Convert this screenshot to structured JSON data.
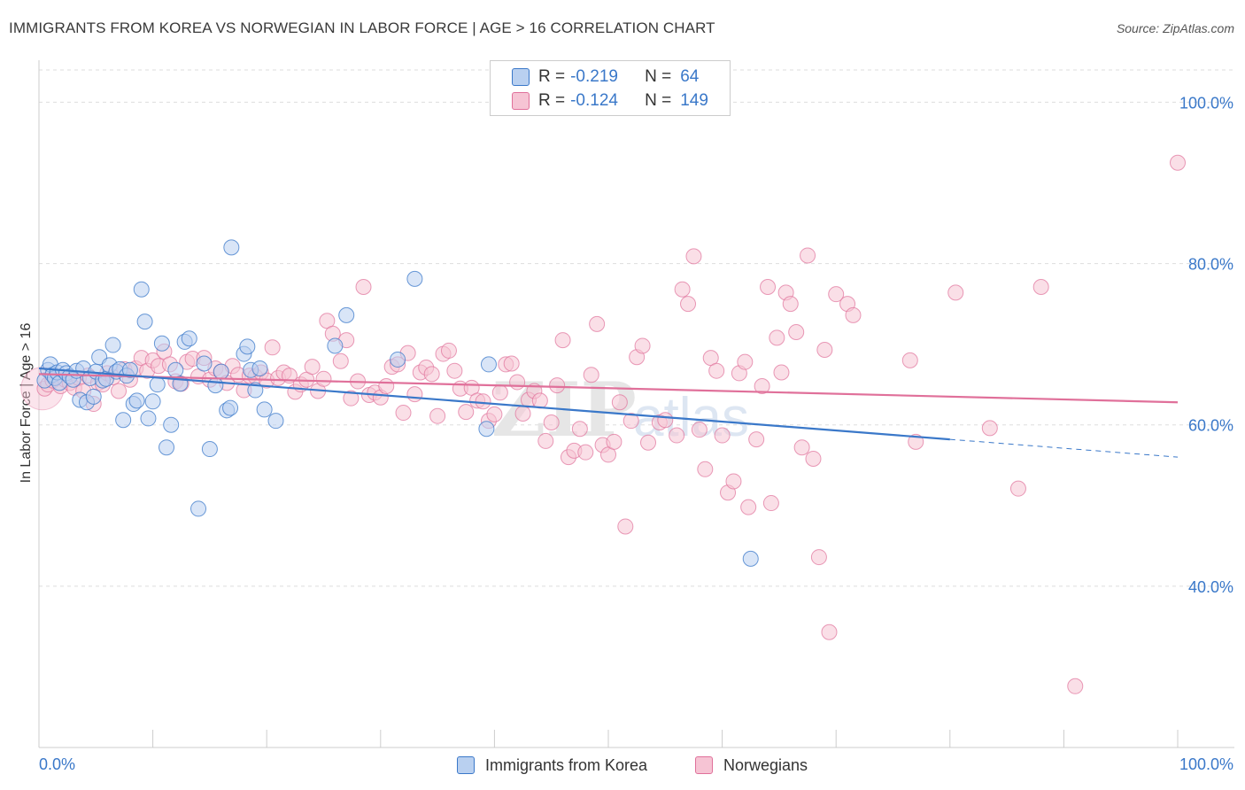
{
  "title": "IMMIGRANTS FROM KOREA VS NORWEGIAN IN LABOR FORCE | AGE > 16 CORRELATION CHART",
  "source": "Source: ZipAtlas.com",
  "colors": {
    "blue": "#3a78c9",
    "blue_fill": "#b9d0f0",
    "pink": "#e0709a",
    "pink_fill": "#f6c4d4",
    "grid": "#dddddd",
    "tick_label": "#3a78c9"
  },
  "legend": {
    "rows": [
      {
        "r_label": "R =",
        "r_value": "-0.219",
        "n_label": "N =",
        "n_value": "64"
      },
      {
        "r_label": "R =",
        "r_value": "-0.124",
        "n_label": "N =",
        "n_value": "149"
      }
    ]
  },
  "bottom_legend": {
    "korea": "Immigrants from Korea",
    "norwegians": "Norwegians"
  },
  "chart_data": {
    "type": "scatter",
    "title": "IMMIGRANTS FROM KOREA VS NORWEGIAN IN LABOR FORCE | AGE > 16 CORRELATION CHART",
    "xlabel": "",
    "ylabel": "In Labor Force | Age > 16",
    "xlim": [
      0,
      100
    ],
    "ylim": [
      20,
      104
    ],
    "x_tick_labels": [
      "0.0%",
      "100.0%"
    ],
    "y_ticks": [
      40,
      60,
      80,
      100
    ],
    "y_tick_labels": [
      "40.0%",
      "60.0%",
      "80.0%",
      "100.0%"
    ],
    "grid": true,
    "series": [
      {
        "name": "Immigrants from Korea",
        "color": "#3a78c9",
        "trend": {
          "x0": 0,
          "y0": 67.0,
          "x1": 80,
          "y1": 58.2,
          "dashed_to": 100,
          "dashed_y": 56.0
        },
        "points": [
          [
            0.5,
            65.5
          ],
          [
            0.8,
            66.8
          ],
          [
            1.0,
            67.5
          ],
          [
            1.2,
            66.2
          ],
          [
            1.4,
            65.8
          ],
          [
            1.6,
            66.5
          ],
          [
            1.8,
            65.2
          ],
          [
            2.1,
            66.8
          ],
          [
            2.4,
            66.4
          ],
          [
            2.7,
            66.0
          ],
          [
            3.0,
            65.6
          ],
          [
            3.3,
            66.7
          ],
          [
            3.6,
            63.1
          ],
          [
            3.9,
            67.0
          ],
          [
            4.2,
            62.8
          ],
          [
            4.5,
            65.8
          ],
          [
            4.8,
            63.5
          ],
          [
            5.0,
            66.6
          ],
          [
            5.3,
            68.4
          ],
          [
            5.6,
            65.5
          ],
          [
            5.9,
            65.7
          ],
          [
            6.2,
            67.4
          ],
          [
            6.5,
            69.9
          ],
          [
            6.8,
            66.6
          ],
          [
            7.1,
            66.9
          ],
          [
            7.4,
            60.6
          ],
          [
            7.7,
            66.1
          ],
          [
            8.0,
            66.8
          ],
          [
            8.3,
            62.6
          ],
          [
            8.6,
            63.0
          ],
          [
            9.0,
            76.8
          ],
          [
            9.3,
            72.8
          ],
          [
            9.6,
            60.8
          ],
          [
            10.0,
            62.9
          ],
          [
            10.4,
            65.0
          ],
          [
            10.8,
            70.1
          ],
          [
            11.2,
            57.2
          ],
          [
            11.6,
            60.0
          ],
          [
            12.0,
            66.8
          ],
          [
            12.4,
            65.1
          ],
          [
            12.8,
            70.3
          ],
          [
            13.2,
            70.7
          ],
          [
            14.0,
            49.6
          ],
          [
            14.5,
            67.6
          ],
          [
            15.0,
            57.0
          ],
          [
            15.5,
            64.9
          ],
          [
            16.0,
            66.6
          ],
          [
            16.5,
            61.8
          ],
          [
            16.8,
            62.1
          ],
          [
            16.9,
            82.0
          ],
          [
            18.0,
            68.8
          ],
          [
            18.3,
            69.7
          ],
          [
            18.6,
            66.8
          ],
          [
            19.0,
            64.3
          ],
          [
            19.4,
            67.0
          ],
          [
            19.8,
            61.9
          ],
          [
            20.8,
            60.5
          ],
          [
            26.0,
            69.8
          ],
          [
            27.0,
            73.6
          ],
          [
            31.5,
            68.1
          ],
          [
            33.0,
            78.1
          ],
          [
            39.5,
            67.5
          ],
          [
            39.3,
            59.5
          ],
          [
            62.5,
            43.4
          ]
        ]
      },
      {
        "name": "Norwegians",
        "color": "#e0709a",
        "trend": {
          "x0": 0,
          "y0": 66.3,
          "x1": 100,
          "y1": 62.8
        },
        "points": [
          [
            0.5,
            64.5
          ],
          [
            0.8,
            65.0
          ],
          [
            1.2,
            65.5
          ],
          [
            1.5,
            66.0
          ],
          [
            1.9,
            64.8
          ],
          [
            2.3,
            65.6
          ],
          [
            2.7,
            65.2
          ],
          [
            3.1,
            64.6
          ],
          [
            3.5,
            65.8
          ],
          [
            3.9,
            64.2
          ],
          [
            4.3,
            66.1
          ],
          [
            4.8,
            62.6
          ],
          [
            5.2,
            65.2
          ],
          [
            5.6,
            65.0
          ],
          [
            6.0,
            66.4
          ],
          [
            6.5,
            65.9
          ],
          [
            7.0,
            64.2
          ],
          [
            7.5,
            66.9
          ],
          [
            8.0,
            65.6
          ],
          [
            8.5,
            67.0
          ],
          [
            9.0,
            68.3
          ],
          [
            9.5,
            66.7
          ],
          [
            10.0,
            68.0
          ],
          [
            10.5,
            67.3
          ],
          [
            11.0,
            69.1
          ],
          [
            11.5,
            67.5
          ],
          [
            12.0,
            65.4
          ],
          [
            12.5,
            65.1
          ],
          [
            13.0,
            67.8
          ],
          [
            13.5,
            68.2
          ],
          [
            14.0,
            66.0
          ],
          [
            14.5,
            68.3
          ],
          [
            15.0,
            65.6
          ],
          [
            15.5,
            67.0
          ],
          [
            16.0,
            66.6
          ],
          [
            16.5,
            65.2
          ],
          [
            17.0,
            67.3
          ],
          [
            17.5,
            66.2
          ],
          [
            18.0,
            64.3
          ],
          [
            18.5,
            66.1
          ],
          [
            19.0,
            66.0
          ],
          [
            19.5,
            66.5
          ],
          [
            20.0,
            65.5
          ],
          [
            20.5,
            69.6
          ],
          [
            21.0,
            65.8
          ],
          [
            21.5,
            66.5
          ],
          [
            22.0,
            66.1
          ],
          [
            22.5,
            64.1
          ],
          [
            23.0,
            65.0
          ],
          [
            23.5,
            65.6
          ],
          [
            24.0,
            67.2
          ],
          [
            24.5,
            64.2
          ],
          [
            25.0,
            65.7
          ],
          [
            25.3,
            72.9
          ],
          [
            25.8,
            71.3
          ],
          [
            26.5,
            67.9
          ],
          [
            27.0,
            70.5
          ],
          [
            27.4,
            63.3
          ],
          [
            28.0,
            65.4
          ],
          [
            28.5,
            77.1
          ],
          [
            29.0,
            63.7
          ],
          [
            29.5,
            64.0
          ],
          [
            30.0,
            63.4
          ],
          [
            30.5,
            64.8
          ],
          [
            31.0,
            67.2
          ],
          [
            31.5,
            67.5
          ],
          [
            32.0,
            61.5
          ],
          [
            32.4,
            68.9
          ],
          [
            33.0,
            63.8
          ],
          [
            33.5,
            66.5
          ],
          [
            34.0,
            67.1
          ],
          [
            34.5,
            66.3
          ],
          [
            35.0,
            61.1
          ],
          [
            35.5,
            68.8
          ],
          [
            36.0,
            69.2
          ],
          [
            36.5,
            66.7
          ],
          [
            37.0,
            64.5
          ],
          [
            37.5,
            61.6
          ],
          [
            38.0,
            64.6
          ],
          [
            38.5,
            63.0
          ],
          [
            39.0,
            62.9
          ],
          [
            39.5,
            60.5
          ],
          [
            40.0,
            61.3
          ],
          [
            40.5,
            64.0
          ],
          [
            41.0,
            67.5
          ],
          [
            41.5,
            67.6
          ],
          [
            42.0,
            65.3
          ],
          [
            42.5,
            61.4
          ],
          [
            43.0,
            63.1
          ],
          [
            43.5,
            64.2
          ],
          [
            44.0,
            63.0
          ],
          [
            44.5,
            58.0
          ],
          [
            45.0,
            60.3
          ],
          [
            45.5,
            64.9
          ],
          [
            46.0,
            70.5
          ],
          [
            46.5,
            56.0
          ],
          [
            47.0,
            56.8
          ],
          [
            47.5,
            59.5
          ],
          [
            48.0,
            56.6
          ],
          [
            48.5,
            66.2
          ],
          [
            49.0,
            72.5
          ],
          [
            49.5,
            57.5
          ],
          [
            50.0,
            56.3
          ],
          [
            50.5,
            57.9
          ],
          [
            51.0,
            62.8
          ],
          [
            51.5,
            47.4
          ],
          [
            52.0,
            60.5
          ],
          [
            52.5,
            68.4
          ],
          [
            53.0,
            69.8
          ],
          [
            53.5,
            57.8
          ],
          [
            54.5,
            60.3
          ],
          [
            55.0,
            60.6
          ],
          [
            56.0,
            58.7
          ],
          [
            56.5,
            76.8
          ],
          [
            57.0,
            75.0
          ],
          [
            57.5,
            80.9
          ],
          [
            58.0,
            59.4
          ],
          [
            58.5,
            54.5
          ],
          [
            59.0,
            68.3
          ],
          [
            59.5,
            66.7
          ],
          [
            60.0,
            58.7
          ],
          [
            60.5,
            51.6
          ],
          [
            61.0,
            53.0
          ],
          [
            61.5,
            66.4
          ],
          [
            62.0,
            67.8
          ],
          [
            62.3,
            49.8
          ],
          [
            63.0,
            58.2
          ],
          [
            63.5,
            64.8
          ],
          [
            64.0,
            77.1
          ],
          [
            64.3,
            50.3
          ],
          [
            64.8,
            70.8
          ],
          [
            65.2,
            66.5
          ],
          [
            65.6,
            76.4
          ],
          [
            66.0,
            75.0
          ],
          [
            66.5,
            71.5
          ],
          [
            67.0,
            57.2
          ],
          [
            67.5,
            81.0
          ],
          [
            68.0,
            55.8
          ],
          [
            68.5,
            43.6
          ],
          [
            69.0,
            69.3
          ],
          [
            69.4,
            34.3
          ],
          [
            70.0,
            76.2
          ],
          [
            71.0,
            75.0
          ],
          [
            71.5,
            73.6
          ],
          [
            76.5,
            68.0
          ],
          [
            77.0,
            57.9
          ],
          [
            80.5,
            76.4
          ],
          [
            83.5,
            59.6
          ],
          [
            86.0,
            52.1
          ],
          [
            88.0,
            77.1
          ],
          [
            91.0,
            27.6
          ],
          [
            100.0,
            92.5
          ]
        ]
      }
    ]
  }
}
